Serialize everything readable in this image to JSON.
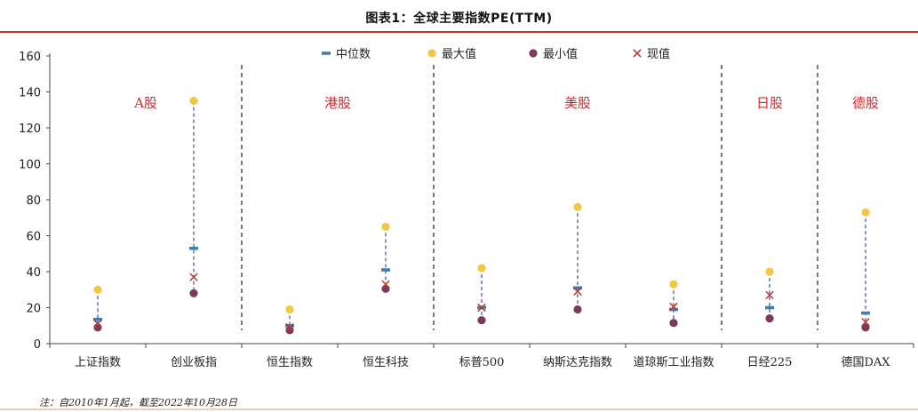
{
  "title": "图表1：全球主要指数PE(TTM)",
  "note": "注：自2010年1月起，截至2022年10月28日",
  "colors": {
    "median": "#3d7fb0",
    "max": "#f2c744",
    "min": "#7a3a5c",
    "current": "#c0392b",
    "range": "#4a5fa8",
    "group_label": "#d9262d"
  },
  "chart_data": {
    "type": "scatter",
    "title": "全球主要指数PE(TTM)",
    "ylim": [
      0,
      160
    ],
    "yticks": [
      0,
      20,
      40,
      60,
      80,
      100,
      120,
      140,
      160
    ],
    "legend": {
      "placement": "top",
      "entries": [
        {
          "key": "median",
          "label": "中位数"
        },
        {
          "key": "max",
          "label": "最大值"
        },
        {
          "key": "min",
          "label": "最小值"
        },
        {
          "key": "current",
          "label": "现值"
        }
      ]
    },
    "categories": [
      "上证指数",
      "创业板指",
      "恒生指数",
      "恒生科技",
      "标普500",
      "纳斯达克指数",
      "道琼斯工业指数",
      "日经225",
      "德国DAX"
    ],
    "series": [
      {
        "key": "median",
        "name": "中位数",
        "values": [
          13.5,
          53,
          10,
          41,
          20,
          31,
          19,
          20,
          17
        ]
      },
      {
        "key": "max",
        "name": "最大值",
        "values": [
          30,
          135,
          19,
          65,
          42,
          76,
          33,
          40,
          73
        ]
      },
      {
        "key": "min",
        "name": "最小值",
        "values": [
          9,
          28,
          7.5,
          30.5,
          13,
          19,
          11.5,
          14,
          9
        ]
      },
      {
        "key": "current",
        "name": "现值",
        "values": [
          11,
          37,
          9,
          33,
          20,
          29,
          20.5,
          27,
          12
        ]
      }
    ],
    "groups": [
      {
        "label": "A股",
        "start": 0,
        "end": 1
      },
      {
        "label": "港股",
        "start": 2,
        "end": 3
      },
      {
        "label": "美股",
        "start": 4,
        "end": 6
      },
      {
        "label": "日股",
        "start": 7,
        "end": 7
      },
      {
        "label": "德股",
        "start": 8,
        "end": 8
      }
    ]
  }
}
